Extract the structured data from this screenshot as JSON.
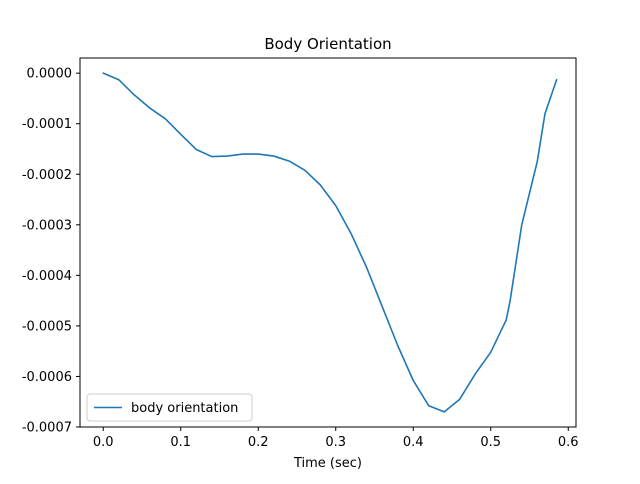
{
  "chart_data": {
    "type": "line",
    "title": "Body Orientation",
    "xlabel": "Time (sec)",
    "ylabel": "",
    "xlim": [
      -0.03,
      0.61
    ],
    "ylim": [
      -0.0007,
      3e-05
    ],
    "xticks": [
      0.0,
      0.1,
      0.2,
      0.3,
      0.4,
      0.5,
      0.6
    ],
    "xtick_labels": [
      "0.0",
      "0.1",
      "0.2",
      "0.3",
      "0.4",
      "0.5",
      "0.6"
    ],
    "yticks": [
      0.0,
      -0.0001,
      -0.0002,
      -0.0003,
      -0.0004,
      -0.0005,
      -0.0006,
      -0.0007
    ],
    "ytick_labels": [
      "0.0000",
      "-0.0001",
      "-0.0002",
      "-0.0003",
      "-0.0004",
      "-0.0005",
      "-0.0006",
      "-0.0007"
    ],
    "grid": false,
    "legend_position": "lower-left",
    "series": [
      {
        "name": "body orientation",
        "color": "#1f77b4",
        "x": [
          0.0,
          0.02,
          0.04,
          0.06,
          0.08,
          0.1,
          0.12,
          0.14,
          0.16,
          0.18,
          0.2,
          0.22,
          0.24,
          0.26,
          0.28,
          0.3,
          0.32,
          0.34,
          0.36,
          0.38,
          0.4,
          0.42,
          0.44,
          0.46,
          0.48,
          0.5,
          0.52,
          0.525,
          0.54,
          0.56,
          0.57,
          0.585
        ],
        "y": [
          0.0,
          -1.3e-05,
          -4.3e-05,
          -6.9e-05,
          -9e-05,
          -0.000121,
          -0.000151,
          -0.000165,
          -0.000164,
          -0.00016,
          -0.00016,
          -0.000164,
          -0.000174,
          -0.000192,
          -0.000221,
          -0.000262,
          -0.000318,
          -0.000385,
          -0.000462,
          -0.000539,
          -0.000608,
          -0.000658,
          -0.00067,
          -0.000645,
          -0.000595,
          -0.000552,
          -0.000488,
          -0.00045,
          -0.0003,
          -0.000175,
          -8e-05,
          -1.3e-05
        ]
      }
    ]
  }
}
